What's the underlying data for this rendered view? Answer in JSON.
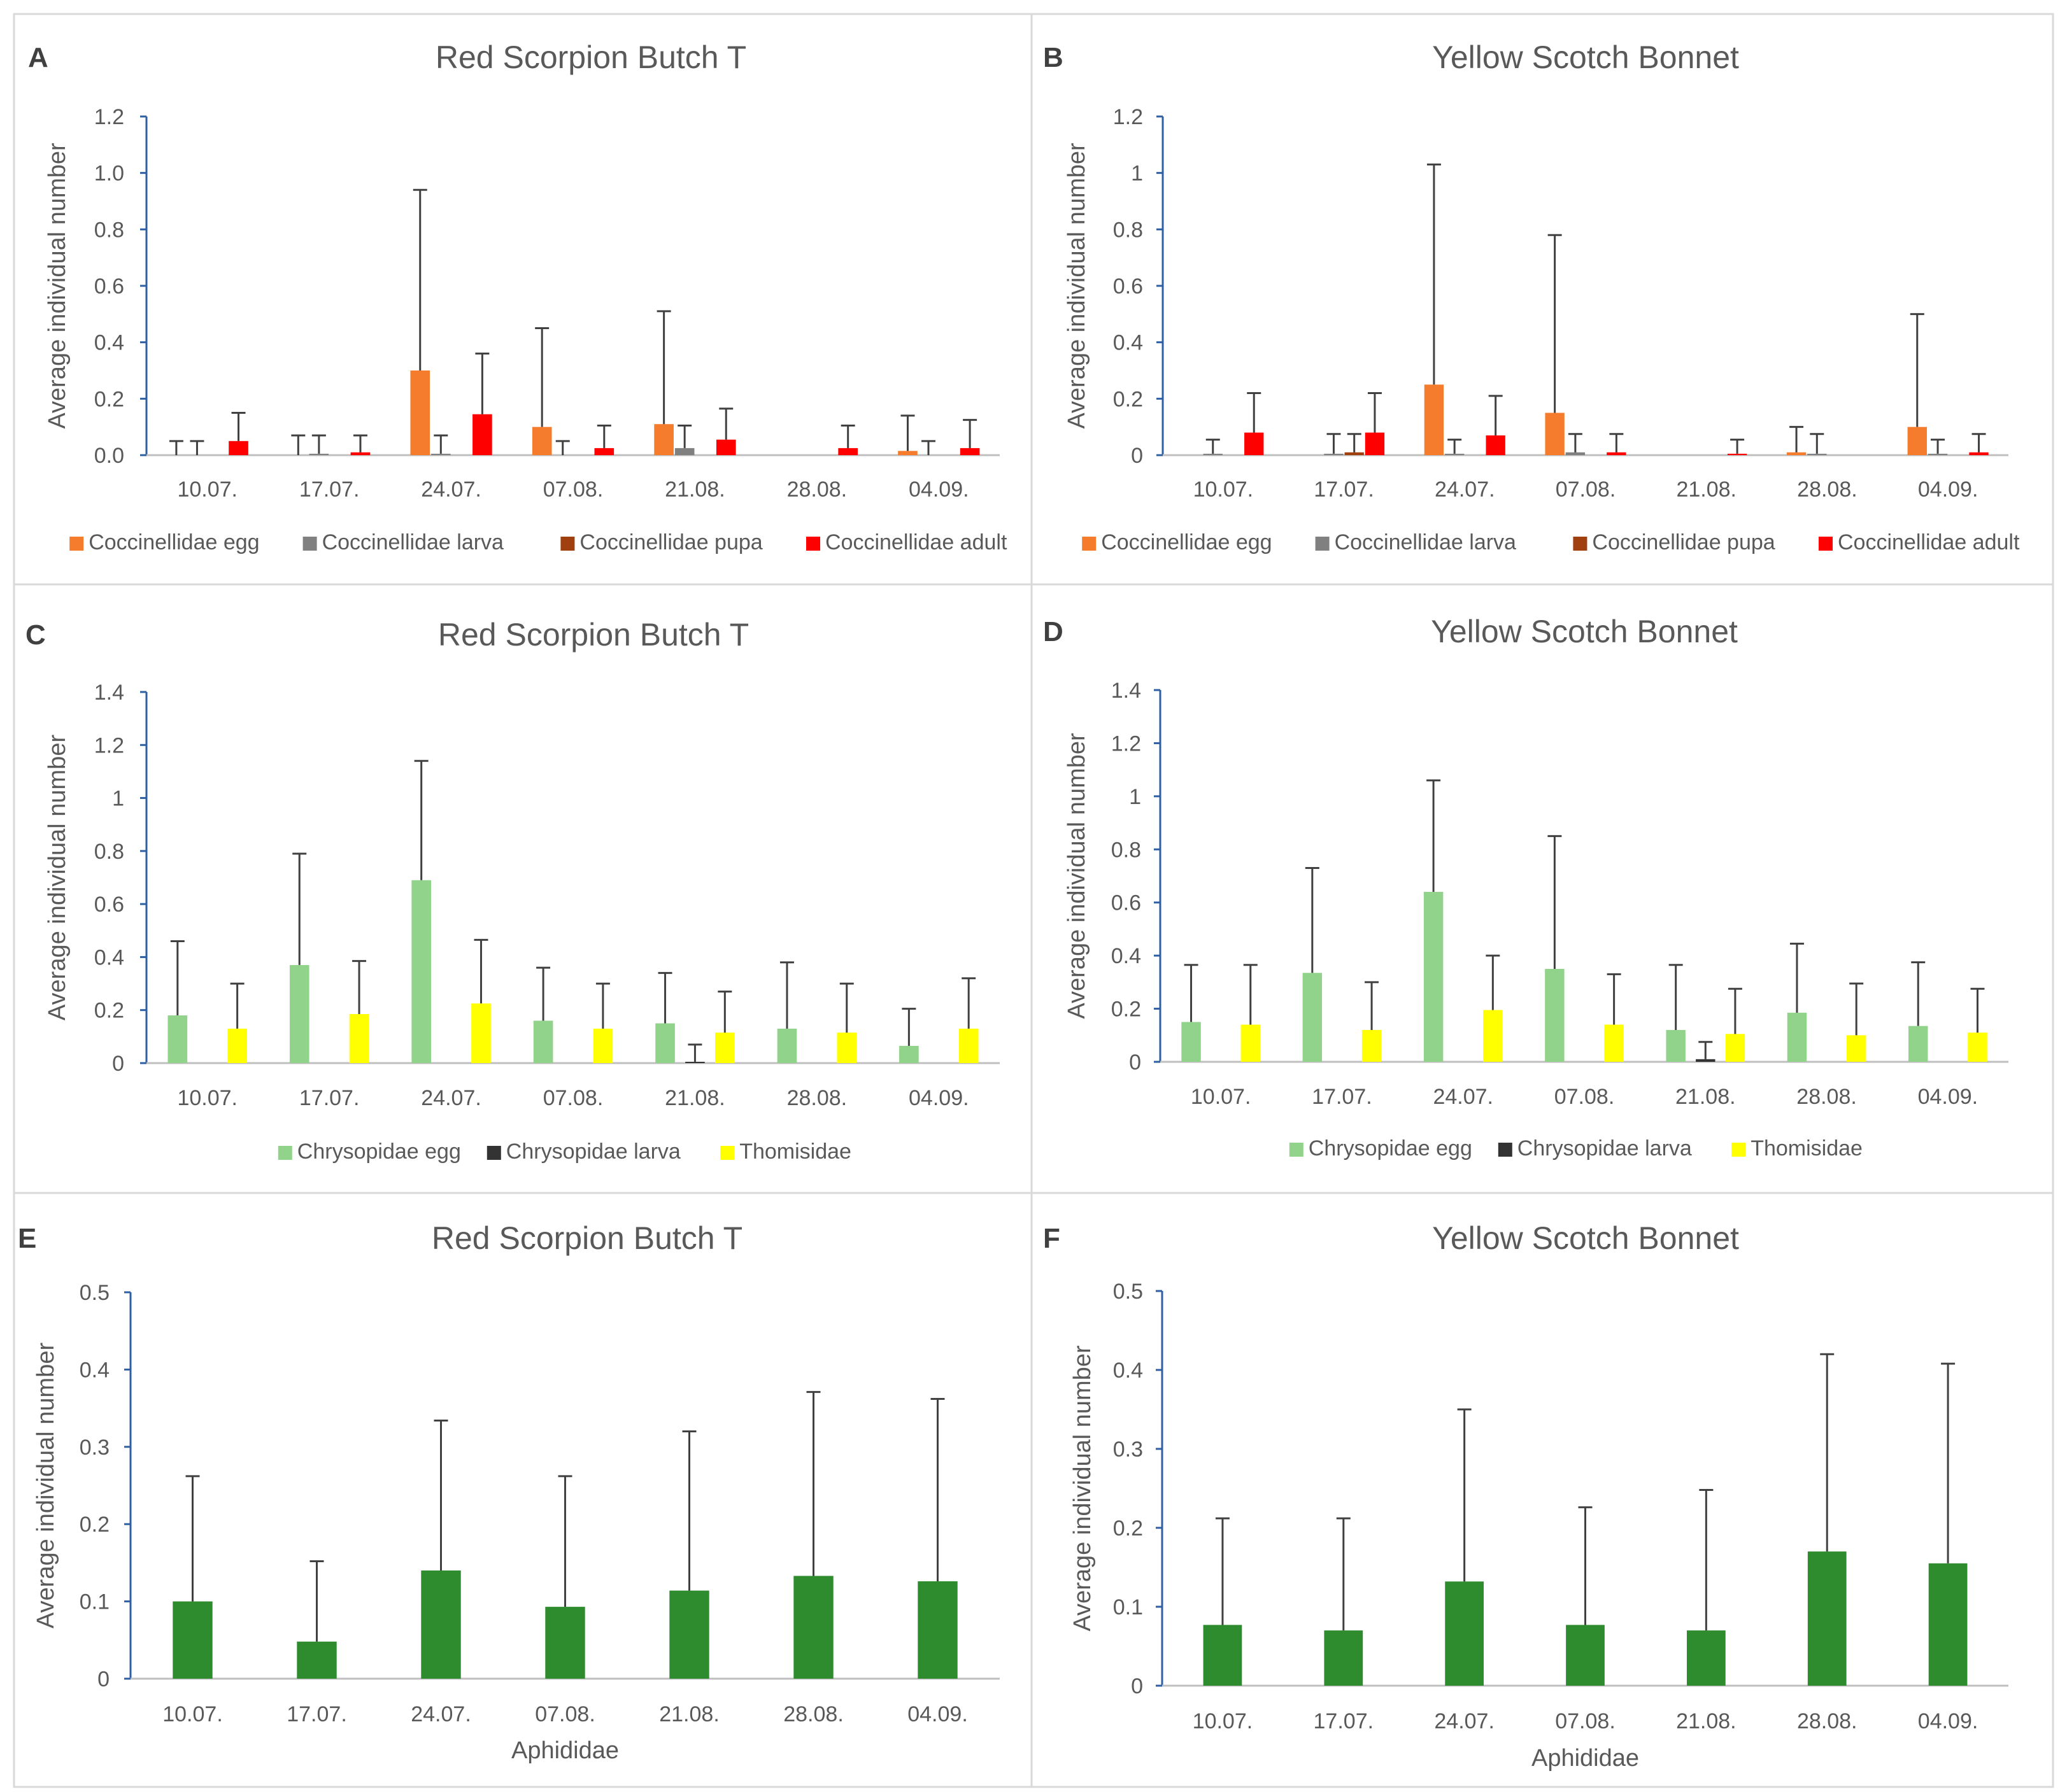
{
  "figure": {
    "bg": "#ffffff",
    "border_color": "#d9d9d9",
    "axis_color": "#2e5fa3",
    "text_color": "#595959",
    "error_color": "#404040"
  },
  "chart_data": [
    {
      "panel": "A",
      "type": "bar",
      "title": "Red Scorpion Butch T",
      "xlabel": "",
      "ylabel": "Average individual number",
      "ylim": [
        0,
        1.2
      ],
      "yticks": [
        "0.0",
        "0.2",
        "0.4",
        "0.6",
        "0.8",
        "1.0",
        "1.2"
      ],
      "categories": [
        "10.07.",
        "17.07.",
        "24.07.",
        "07.08.",
        "21.08.",
        "28.08.",
        "04.09."
      ],
      "series": [
        {
          "name": "Coccinellidae egg",
          "color": "#f47c2c",
          "values": [
            0,
            0,
            0.3,
            0.1,
            0.11,
            0,
            0.015
          ],
          "errors": [
            0.05,
            0.07,
            0.64,
            0.35,
            0.4,
            0,
            0.125
          ]
        },
        {
          "name": "Coccinellidae larva",
          "color": "#808080",
          "values": [
            0,
            0.005,
            0.005,
            0,
            0.025,
            0,
            0
          ],
          "errors": [
            0.05,
            0.065,
            0.065,
            0.05,
            0.08,
            0,
            0.05
          ]
        },
        {
          "name": "Coccinellidae pupa",
          "color": "#a0400f",
          "values": [
            0,
            0,
            0,
            0,
            0,
            0,
            0
          ],
          "errors": [
            0,
            0,
            0,
            0,
            0,
            0,
            0
          ]
        },
        {
          "name": "Coccinellidae adult",
          "color": "#ff0000",
          "values": [
            0.05,
            0.01,
            0.145,
            0.025,
            0.055,
            0.025,
            0.025
          ],
          "errors": [
            0.1,
            0.06,
            0.215,
            0.08,
            0.11,
            0.08,
            0.1
          ]
        }
      ]
    },
    {
      "panel": "B",
      "type": "bar",
      "title": "Yellow Scotch Bonnet",
      "xlabel": "",
      "ylabel": "Average individual number",
      "ylim": [
        0,
        1.2
      ],
      "yticks": [
        "0",
        "0.2",
        "0.4",
        "0.6",
        "0.8",
        "1",
        "1.2"
      ],
      "categories": [
        "10.07.",
        "17.07.",
        "24.07.",
        "07.08.",
        "21.08.",
        "28.08.",
        "04.09."
      ],
      "series": [
        {
          "name": "Coccinellidae egg",
          "color": "#f47c2c",
          "values": [
            0,
            0,
            0.25,
            0.15,
            0,
            0.01,
            0.1
          ],
          "errors": [
            0,
            0,
            0.78,
            0.63,
            0,
            0.09,
            0.4
          ]
        },
        {
          "name": "Coccinellidae larva",
          "color": "#808080",
          "values": [
            0.005,
            0.005,
            0.005,
            0.01,
            0,
            0.005,
            0.005
          ],
          "errors": [
            0.05,
            0.07,
            0.05,
            0.065,
            0,
            0.07,
            0.05
          ]
        },
        {
          "name": "Coccinellidae pupa",
          "color": "#a0400f",
          "values": [
            0,
            0.01,
            0,
            0,
            0,
            0,
            0
          ],
          "errors": [
            0,
            0.065,
            0,
            0,
            0,
            0,
            0
          ]
        },
        {
          "name": "Coccinellidae adult",
          "color": "#ff0000",
          "values": [
            0.08,
            0.08,
            0.07,
            0.01,
            0.005,
            0,
            0.01
          ],
          "errors": [
            0.14,
            0.14,
            0.14,
            0.065,
            0.05,
            0,
            0.065
          ]
        }
      ]
    },
    {
      "panel": "C",
      "type": "bar",
      "title": "Red Scorpion Butch T",
      "xlabel": "",
      "ylabel": "Average individual number",
      "ylim": [
        0,
        1.4
      ],
      "yticks": [
        "0",
        "0.2",
        "0.4",
        "0.6",
        "0.8",
        "1",
        "1.2",
        "1.4"
      ],
      "categories": [
        "10.07.",
        "17.07.",
        "24.07.",
        "07.08.",
        "21.08.",
        "28.08.",
        "04.09."
      ],
      "series": [
        {
          "name": "Chrysopidae egg",
          "color": "#92d38b",
          "values": [
            0.18,
            0.37,
            0.69,
            0.16,
            0.15,
            0.13,
            0.065
          ],
          "errors": [
            0.28,
            0.42,
            0.45,
            0.2,
            0.19,
            0.25,
            0.14
          ]
        },
        {
          "name": "Chrysopidae larva",
          "color": "#333333",
          "values": [
            0,
            0,
            0,
            0,
            0.005,
            0,
            0
          ],
          "errors": [
            0,
            0,
            0,
            0,
            0.065,
            0,
            0
          ]
        },
        {
          "name": "Thomisidae",
          "color": "#ffff00",
          "values": [
            0.13,
            0.185,
            0.225,
            0.13,
            0.115,
            0.115,
            0.13
          ],
          "errors": [
            0.17,
            0.2,
            0.24,
            0.17,
            0.155,
            0.185,
            0.19
          ]
        }
      ]
    },
    {
      "panel": "D",
      "type": "bar",
      "title": "Yellow Scotch Bonnet",
      "xlabel": "",
      "ylabel": "Average individual number",
      "ylim": [
        0,
        1.4
      ],
      "yticks": [
        "0",
        "0.2",
        "0.4",
        "0.6",
        "0.8",
        "1",
        "1.2",
        "1.4"
      ],
      "categories": [
        "10.07.",
        "17.07.",
        "24.07.",
        "07.08.",
        "21.08.",
        "28.08.",
        "04.09."
      ],
      "series": [
        {
          "name": "Chrysopidae egg",
          "color": "#92d38b",
          "values": [
            0.15,
            0.335,
            0.64,
            0.35,
            0.12,
            0.185,
            0.135
          ],
          "errors": [
            0.215,
            0.395,
            0.42,
            0.5,
            0.245,
            0.26,
            0.24
          ]
        },
        {
          "name": "Chrysopidae larva",
          "color": "#333333",
          "values": [
            0,
            0,
            0,
            0,
            0.01,
            0,
            0
          ],
          "errors": [
            0,
            0,
            0,
            0,
            0.065,
            0,
            0
          ]
        },
        {
          "name": "Thomisidae",
          "color": "#ffff00",
          "values": [
            0.14,
            0.12,
            0.195,
            0.14,
            0.105,
            0.1,
            0.11
          ],
          "errors": [
            0.225,
            0.18,
            0.205,
            0.19,
            0.17,
            0.195,
            0.165
          ]
        }
      ]
    },
    {
      "panel": "E",
      "type": "bar",
      "title": "Red Scorpion Butch T",
      "xlabel": "Aphididae",
      "ylabel": "Average individual number",
      "ylim": [
        0,
        0.5
      ],
      "yticks": [
        "0",
        "0.1",
        "0.2",
        "0.3",
        "0.4",
        "0.5"
      ],
      "categories": [
        "10.07.",
        "17.07.",
        "24.07.",
        "07.08.",
        "21.08.",
        "28.08.",
        "04.09."
      ],
      "series": [
        {
          "name": "Aphididae",
          "color": "#2e8b2e",
          "values": [
            0.1,
            0.048,
            0.14,
            0.093,
            0.114,
            0.133,
            0.126
          ],
          "errors": [
            0.162,
            0.104,
            0.194,
            0.169,
            0.206,
            0.238,
            0.236
          ]
        }
      ]
    },
    {
      "panel": "F",
      "type": "bar",
      "title": "Yellow Scotch Bonnet",
      "xlabel": "Aphididae",
      "ylabel": "Average individual number",
      "ylim": [
        0,
        0.5
      ],
      "yticks": [
        "0",
        "0.1",
        "0.2",
        "0.3",
        "0.4",
        "0.5"
      ],
      "categories": [
        "10.07.",
        "17.07.",
        "24.07.",
        "07.08.",
        "21.08.",
        "28.08.",
        "04.09."
      ],
      "series": [
        {
          "name": "Aphididae",
          "color": "#2e8b2e",
          "values": [
            0.077,
            0.07,
            0.132,
            0.077,
            0.07,
            0.17,
            0.155
          ],
          "errors": [
            0.135,
            0.142,
            0.218,
            0.149,
            0.178,
            0.25,
            0.253
          ]
        }
      ]
    }
  ]
}
